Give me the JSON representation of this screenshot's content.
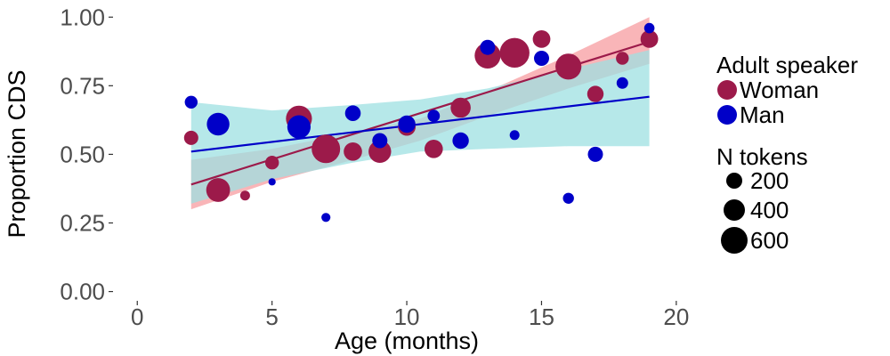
{
  "chart_data": {
    "type": "scatter",
    "xlabel": "Age (months)",
    "ylabel": "Proportion CDS",
    "xlim": [
      -0.9,
      20.5
    ],
    "ylim": [
      -0.05,
      1.03
    ],
    "x_ticks": [
      0,
      5,
      10,
      15,
      20
    ],
    "x_tick_labels": [
      "0",
      "5",
      "10",
      "15",
      "20"
    ],
    "y_ticks": [
      0.0,
      0.25,
      0.5,
      0.75,
      1.0
    ],
    "y_tick_labels": [
      "0.00",
      "0.25",
      "0.50",
      "0.75",
      "1.00"
    ],
    "grid": false,
    "legend_position": "right",
    "legends": {
      "color": {
        "title": "Adult speaker",
        "entries": [
          {
            "label": "Woman",
            "color": "#9c1a4a"
          },
          {
            "label": "Man",
            "color": "#0000c8"
          }
        ]
      },
      "size": {
        "title": "N tokens",
        "entries": [
          {
            "label": "200",
            "value": 200
          },
          {
            "label": "400",
            "value": 400
          },
          {
            "label": "600",
            "value": 600
          }
        ]
      }
    },
    "series": [
      {
        "name": "Woman",
        "color": "#9c1a4a",
        "ribbon_color": "#f8a3a6",
        "trend": {
          "x": [
            2,
            19
          ],
          "y": [
            0.39,
            0.91
          ]
        },
        "ribbon": {
          "x": [
            2,
            5,
            8,
            10.5,
            13,
            16,
            19
          ],
          "lower": [
            0.3,
            0.4,
            0.48,
            0.55,
            0.64,
            0.74,
            0.83
          ],
          "upper": [
            0.48,
            0.52,
            0.58,
            0.63,
            0.73,
            0.86,
            1.0
          ]
        },
        "points": [
          {
            "x": 2,
            "y": 0.56,
            "n": 150
          },
          {
            "x": 3,
            "y": 0.37,
            "n": 420
          },
          {
            "x": 4,
            "y": 0.35,
            "n": 70
          },
          {
            "x": 5,
            "y": 0.47,
            "n": 140
          },
          {
            "x": 6,
            "y": 0.63,
            "n": 500
          },
          {
            "x": 7,
            "y": 0.52,
            "n": 600
          },
          {
            "x": 8,
            "y": 0.51,
            "n": 250
          },
          {
            "x": 9,
            "y": 0.51,
            "n": 380
          },
          {
            "x": 10,
            "y": 0.6,
            "n": 230
          },
          {
            "x": 11,
            "y": 0.52,
            "n": 250
          },
          {
            "x": 12,
            "y": 0.67,
            "n": 300
          },
          {
            "x": 13,
            "y": 0.86,
            "n": 500
          },
          {
            "x": 14,
            "y": 0.87,
            "n": 650
          },
          {
            "x": 15,
            "y": 0.92,
            "n": 230
          },
          {
            "x": 16,
            "y": 0.82,
            "n": 500
          },
          {
            "x": 17,
            "y": 0.72,
            "n": 200
          },
          {
            "x": 18,
            "y": 0.85,
            "n": 120
          },
          {
            "x": 19,
            "y": 0.92,
            "n": 230
          }
        ]
      },
      {
        "name": "Man",
        "color": "#0000c8",
        "ribbon_color": "#9ee0e2",
        "trend": {
          "x": [
            2,
            19
          ],
          "y": [
            0.51,
            0.71
          ]
        },
        "ribbon": {
          "x": [
            2,
            5,
            8,
            10.5,
            13,
            16,
            19
          ],
          "lower": [
            0.32,
            0.41,
            0.47,
            0.51,
            0.52,
            0.53,
            0.53
          ],
          "upper": [
            0.69,
            0.66,
            0.68,
            0.7,
            0.74,
            0.81,
            0.88
          ]
        },
        "points": [
          {
            "x": 2,
            "y": 0.69,
            "n": 120
          },
          {
            "x": 3,
            "y": 0.61,
            "n": 380
          },
          {
            "x": 5,
            "y": 0.4,
            "n": 40
          },
          {
            "x": 6,
            "y": 0.6,
            "n": 400
          },
          {
            "x": 7,
            "y": 0.27,
            "n": 60
          },
          {
            "x": 8,
            "y": 0.65,
            "n": 180
          },
          {
            "x": 9,
            "y": 0.55,
            "n": 170
          },
          {
            "x": 10,
            "y": 0.61,
            "n": 220
          },
          {
            "x": 11,
            "y": 0.64,
            "n": 110
          },
          {
            "x": 12,
            "y": 0.55,
            "n": 200
          },
          {
            "x": 13,
            "y": 0.89,
            "n": 170
          },
          {
            "x": 14,
            "y": 0.57,
            "n": 70
          },
          {
            "x": 15,
            "y": 0.85,
            "n": 170
          },
          {
            "x": 16,
            "y": 0.34,
            "n": 90
          },
          {
            "x": 17,
            "y": 0.5,
            "n": 170
          },
          {
            "x": 18,
            "y": 0.76,
            "n": 100
          },
          {
            "x": 19,
            "y": 0.96,
            "n": 80
          }
        ]
      }
    ]
  }
}
